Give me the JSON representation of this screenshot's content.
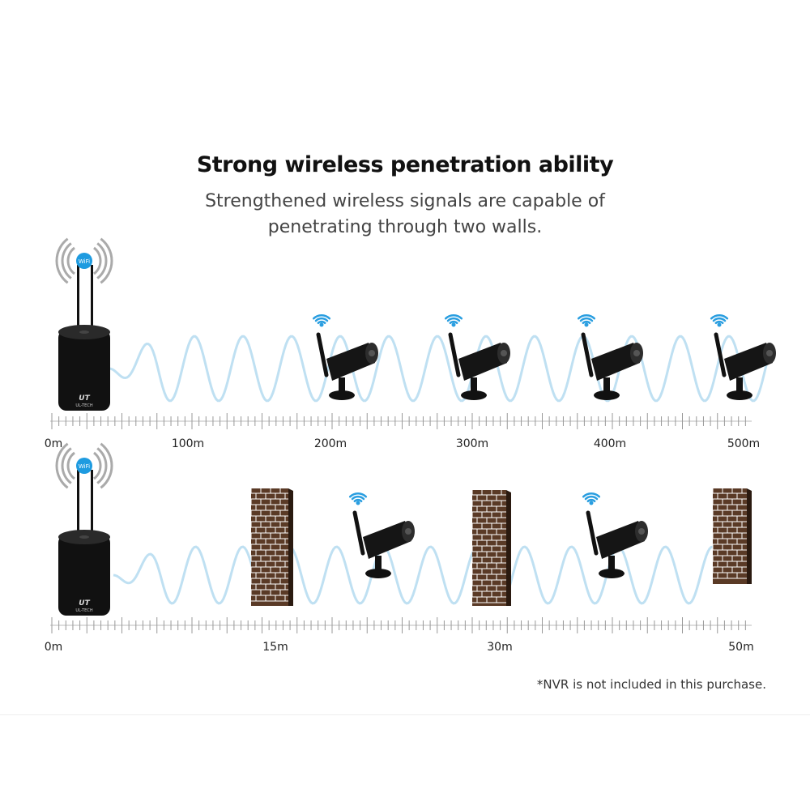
{
  "heading": {
    "title": "Strong wireless penetration ability",
    "subtitle_line1": "Strengthened wireless signals are capable of",
    "subtitle_line2": "penetrating through two walls."
  },
  "nvr": {
    "wifi_badge": "WiFi",
    "logo": "UT UL-TECH"
  },
  "row1": {
    "scale_labels": [
      "0m",
      "100m",
      "200m",
      "300m",
      "400m",
      "500m"
    ]
  },
  "row2": {
    "scale_labels": [
      "0m",
      "15m",
      "30m",
      "50m"
    ]
  },
  "footnote": "*NVR is not included in this purchase.",
  "colors": {
    "signal_wave": "#bfe0f2",
    "wifi_icon": "#2a9ee0",
    "wall": "#5a3a26",
    "device": "#111111"
  }
}
